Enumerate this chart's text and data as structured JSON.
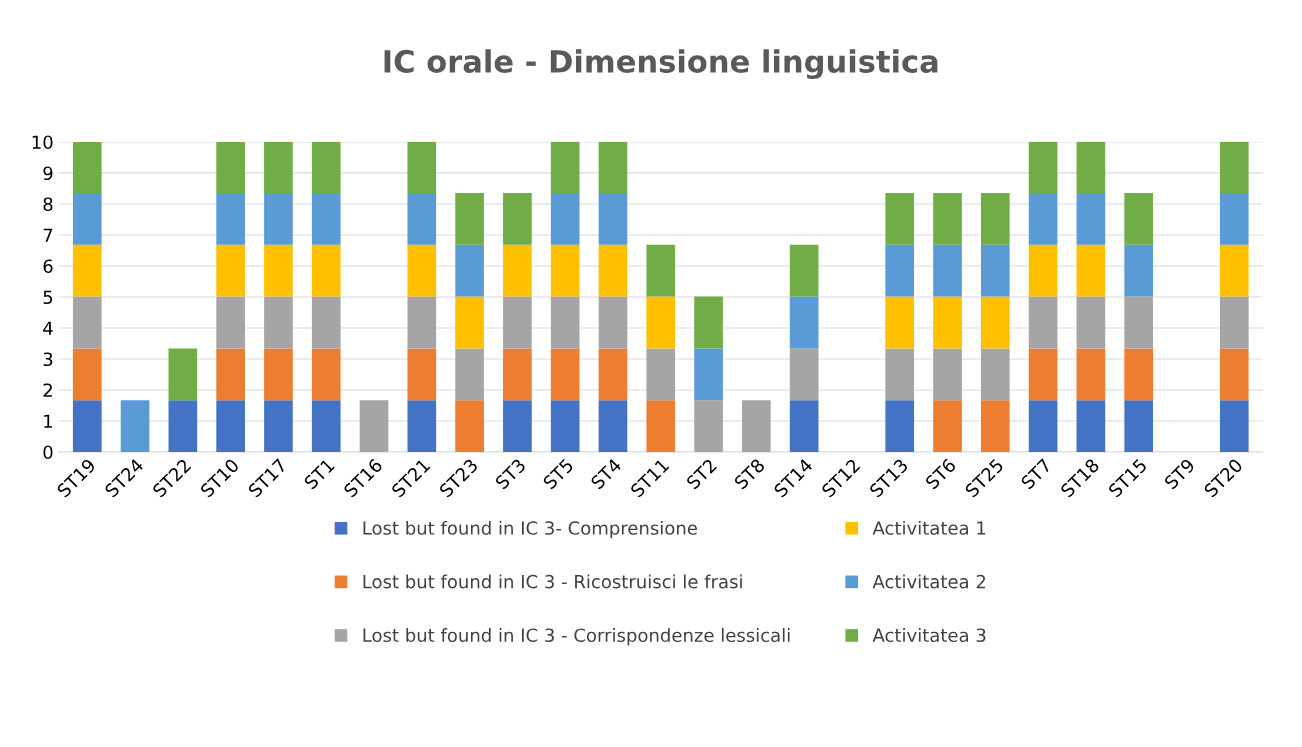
{
  "chart_data": {
    "type": "bar",
    "title": "IC orale - Dimensione linguistica",
    "stacked": true,
    "categories": [
      "ST19",
      "ST24",
      "ST22",
      "ST10",
      "ST17",
      "ST1",
      "ST16",
      "ST21",
      "ST23",
      "ST3",
      "ST5",
      "ST4",
      "ST11",
      "ST2",
      "ST8",
      "ST14",
      "ST12",
      "ST13",
      "ST6",
      "ST25",
      "ST7",
      "ST18",
      "ST15",
      "ST9",
      "ST20"
    ],
    "series": [
      {
        "name": "Lost but found in IC 3- Comprensione",
        "color": "#4472c4",
        "values": [
          1.67,
          0,
          1.67,
          1.67,
          1.67,
          1.67,
          0,
          1.67,
          0,
          1.67,
          1.67,
          1.67,
          0,
          0,
          0,
          1.67,
          0,
          1.67,
          0,
          0,
          1.67,
          1.67,
          1.67,
          0,
          1.67
        ]
      },
      {
        "name": "Lost but found in IC 3 - Ricostruisci le frasi",
        "color": "#ed7d31",
        "values": [
          1.67,
          0,
          0,
          1.67,
          1.67,
          1.67,
          0,
          1.67,
          1.67,
          1.67,
          1.67,
          1.67,
          1.67,
          0,
          0,
          0,
          0,
          0,
          1.67,
          1.67,
          1.67,
          1.67,
          1.67,
          0,
          1.67
        ]
      },
      {
        "name": "Lost but found in IC 3 - Corrispondenze lessicali",
        "color": "#a5a5a5",
        "values": [
          1.67,
          0,
          0,
          1.67,
          1.67,
          1.67,
          1.67,
          1.67,
          1.67,
          1.67,
          1.67,
          1.67,
          1.67,
          1.67,
          1.67,
          1.67,
          0,
          1.67,
          1.67,
          1.67,
          1.67,
          1.67,
          1.67,
          0,
          1.67
        ]
      },
      {
        "name": "Activitatea 1",
        "color": "#ffc000",
        "values": [
          1.67,
          0,
          0,
          1.67,
          1.67,
          1.67,
          0,
          1.67,
          1.67,
          1.67,
          1.67,
          1.67,
          1.67,
          0,
          0,
          0,
          0,
          1.67,
          1.67,
          1.67,
          1.67,
          1.67,
          0,
          0,
          1.67
        ]
      },
      {
        "name": "Activitatea 2",
        "color": "#5b9bd5",
        "values": [
          1.67,
          1.67,
          0,
          1.67,
          1.67,
          1.67,
          0,
          1.67,
          1.67,
          0,
          1.67,
          1.67,
          0,
          1.67,
          0,
          1.67,
          0,
          1.67,
          1.67,
          1.67,
          1.67,
          1.67,
          1.67,
          0,
          1.67
        ]
      },
      {
        "name": "Activitatea 3",
        "color": "#70ad47",
        "values": [
          1.67,
          0,
          1.67,
          1.67,
          1.67,
          1.67,
          0,
          1.67,
          1.67,
          1.67,
          1.67,
          1.67,
          1.67,
          1.67,
          0,
          1.67,
          0,
          1.67,
          1.67,
          1.67,
          1.67,
          1.67,
          1.67,
          0,
          1.67
        ]
      }
    ],
    "ylim": [
      0,
      10
    ],
    "yticks": [
      0,
      1,
      2,
      3,
      4,
      5,
      6,
      7,
      8,
      9,
      10
    ],
    "grid": "y",
    "legend": "bottom"
  }
}
